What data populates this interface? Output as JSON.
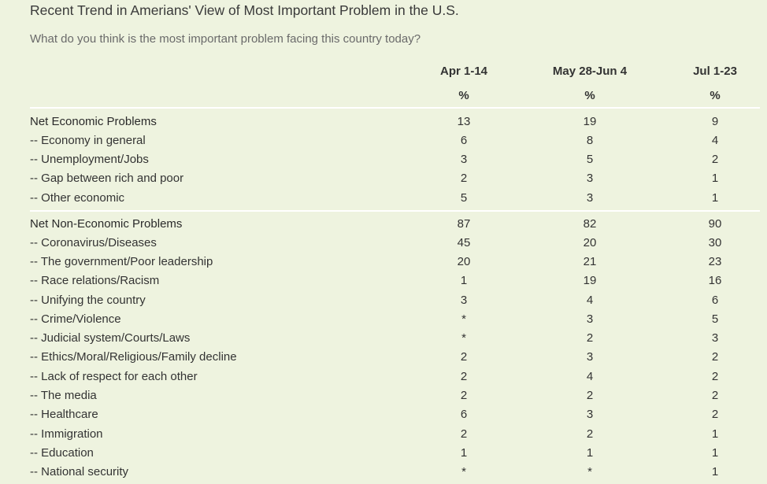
{
  "title": "Recent Trend in Amerians' View of Most Important Problem in the U.S.",
  "subtitle": "What do you think is the most important problem facing this country today?",
  "columns": [
    {
      "label": "Apr 1-14",
      "unit": "%"
    },
    {
      "label": "May 28-Jun 4",
      "unit": "%"
    },
    {
      "label": "Jul 1-23",
      "unit": "%"
    }
  ],
  "rows": [
    {
      "label": "Net Economic Problems",
      "values": [
        "13",
        "19",
        "9"
      ]
    },
    {
      "label": "-- Economy in general",
      "values": [
        "6",
        "8",
        "4"
      ]
    },
    {
      "label": "-- Unemployment/Jobs",
      "values": [
        "3",
        "5",
        "2"
      ]
    },
    {
      "label": "-- Gap between rich and poor",
      "values": [
        "2",
        "3",
        "1"
      ]
    },
    {
      "label": "-- Other economic",
      "values": [
        "5",
        "3",
        "1"
      ]
    },
    {
      "label": "Net Non-Economic Problems",
      "values": [
        "87",
        "82",
        "90"
      ]
    },
    {
      "label": "-- Coronavirus/Diseases",
      "values": [
        "45",
        "20",
        "30"
      ]
    },
    {
      "label": "-- The government/Poor leadership",
      "values": [
        "20",
        "21",
        "23"
      ]
    },
    {
      "label": "-- Race relations/Racism",
      "values": [
        "1",
        "19",
        "16"
      ]
    },
    {
      "label": "-- Unifying the country",
      "values": [
        "3",
        "4",
        "6"
      ]
    },
    {
      "label": "-- Crime/Violence",
      "values": [
        "*",
        "3",
        "5"
      ]
    },
    {
      "label": "-- Judicial system/Courts/Laws",
      "values": [
        "*",
        "2",
        "3"
      ]
    },
    {
      "label": "-- Ethics/Moral/Religious/Family decline",
      "values": [
        "2",
        "3",
        "2"
      ]
    },
    {
      "label": "-- Lack of respect for each other",
      "values": [
        "2",
        "4",
        "2"
      ]
    },
    {
      "label": "-- The media",
      "values": [
        "2",
        "2",
        "2"
      ]
    },
    {
      "label": "-- Healthcare",
      "values": [
        "6",
        "3",
        "2"
      ]
    },
    {
      "label": "-- Immigration",
      "values": [
        "2",
        "2",
        "1"
      ]
    },
    {
      "label": "-- Education",
      "values": [
        "1",
        "1",
        "1"
      ]
    },
    {
      "label": "-- National security",
      "values": [
        "*",
        "*",
        "1"
      ]
    }
  ]
}
